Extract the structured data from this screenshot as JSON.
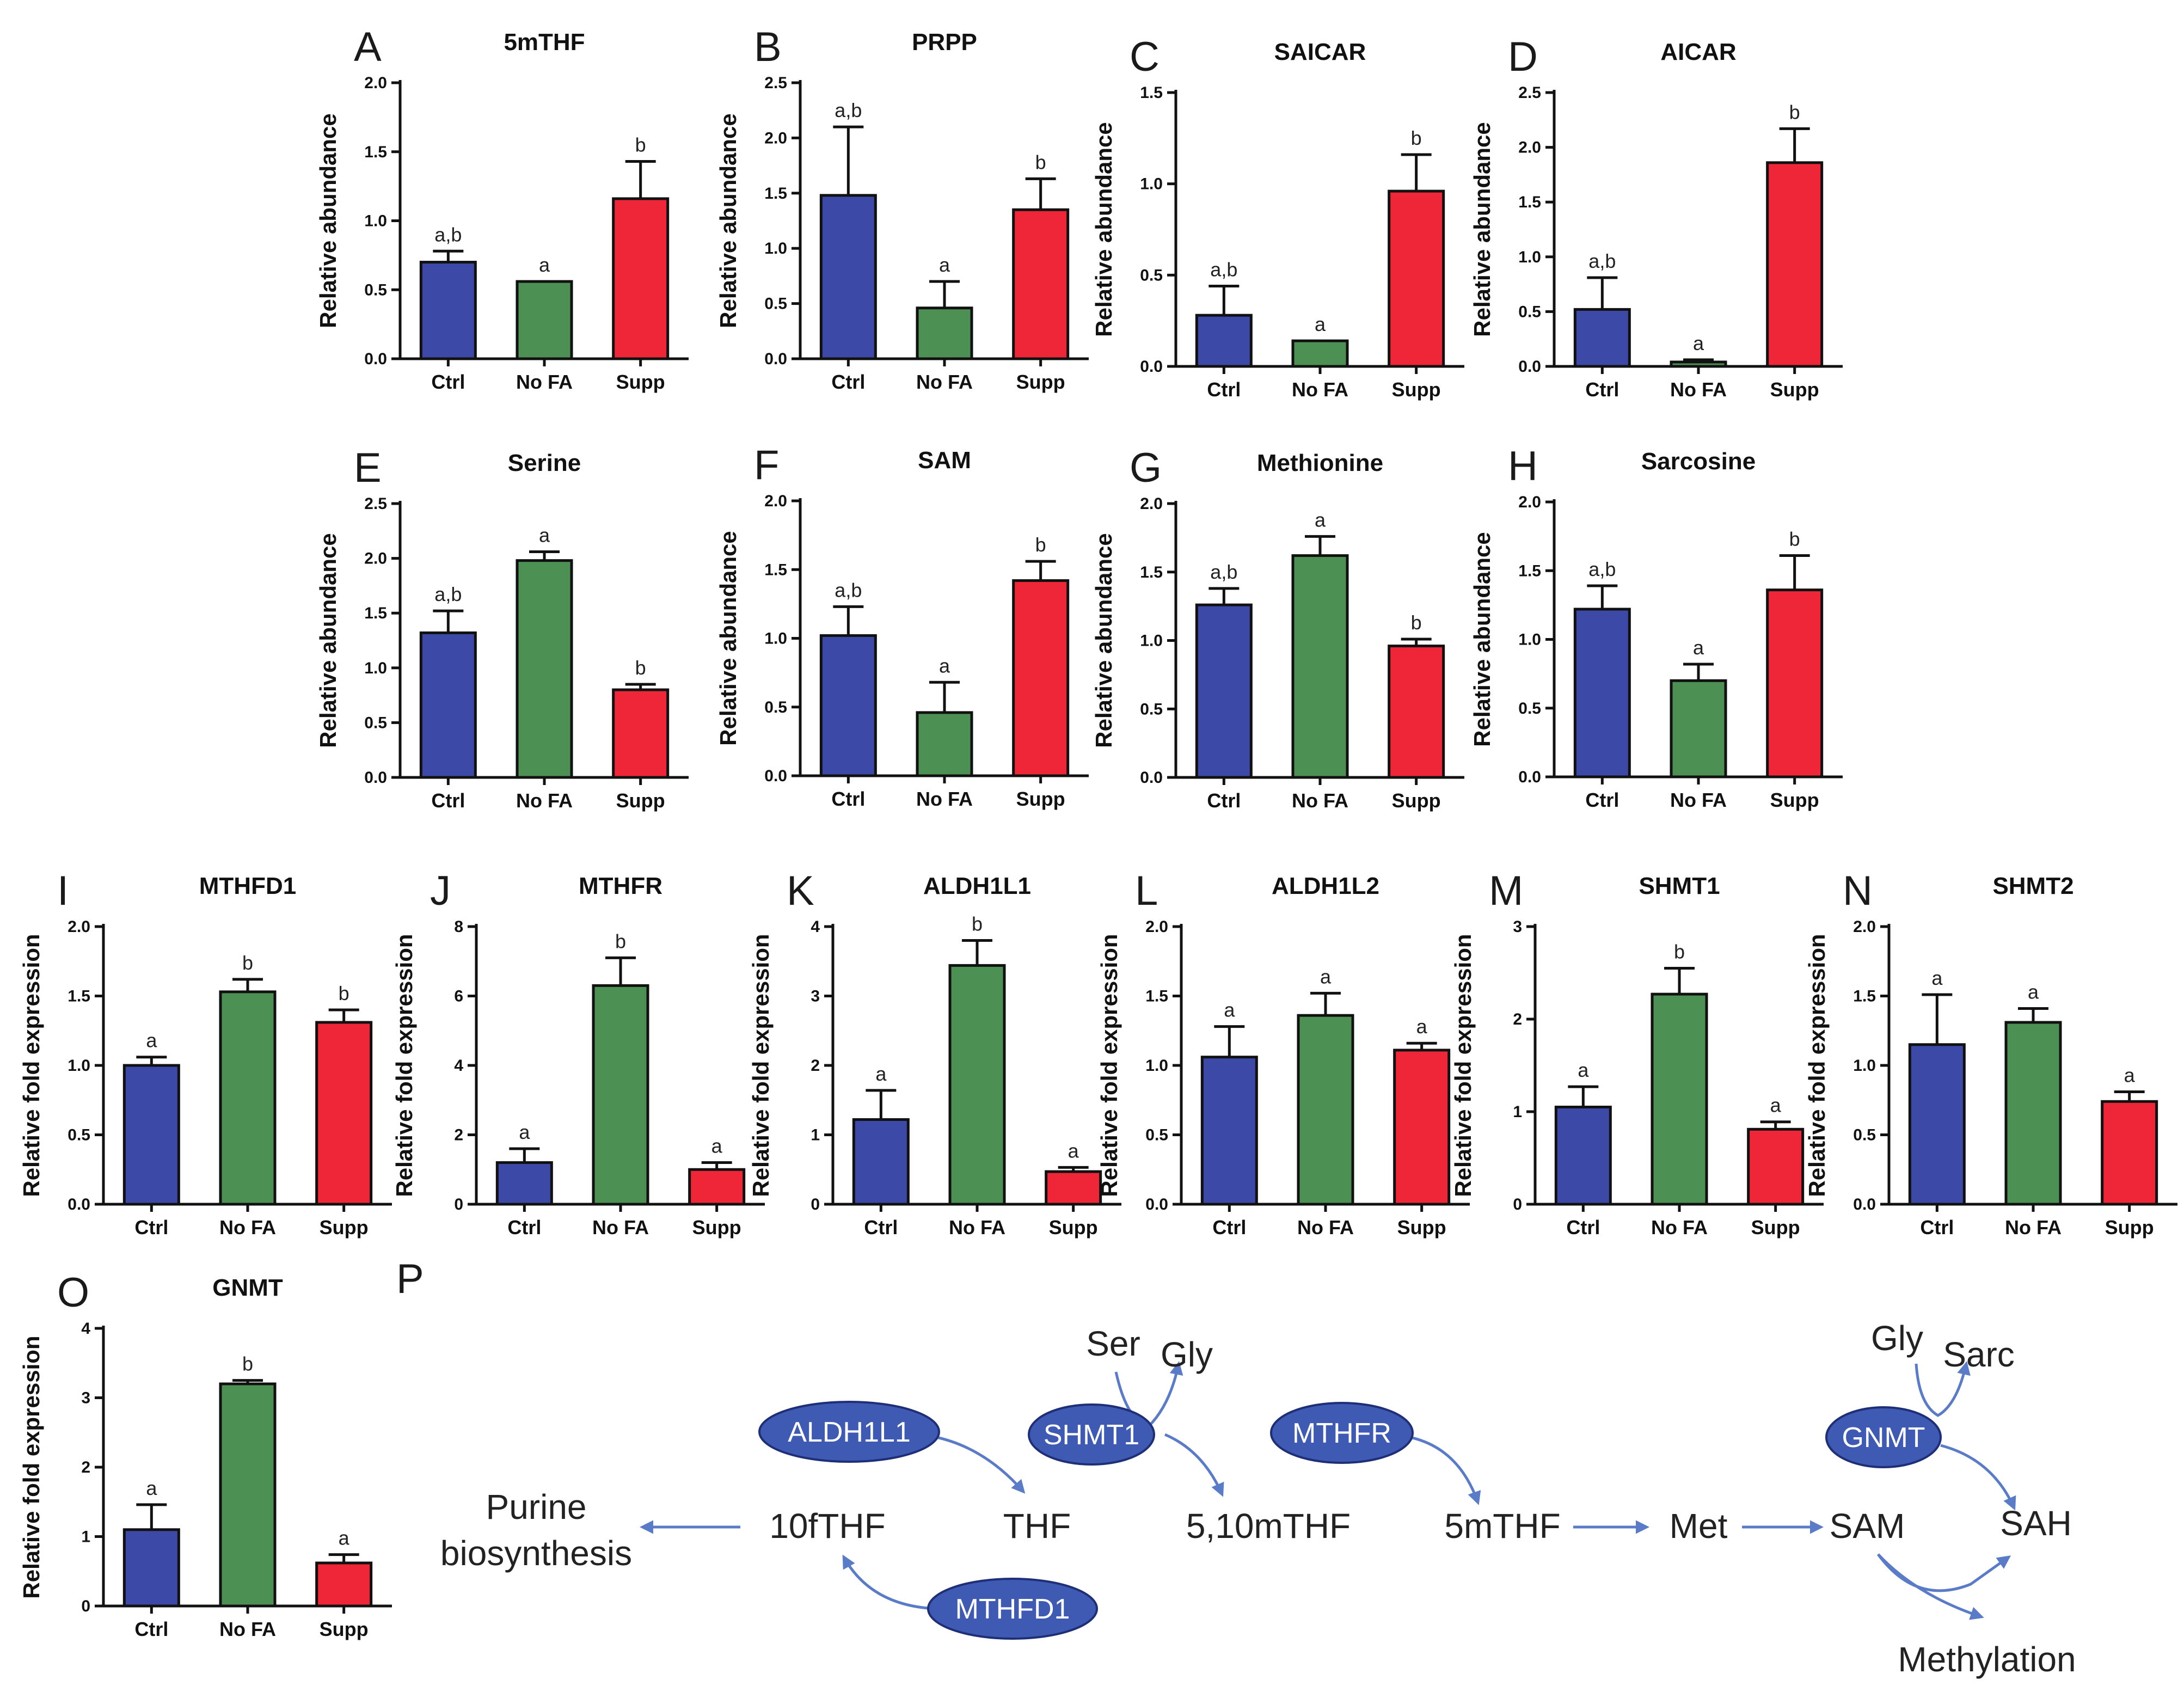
{
  "colors": {
    "Ctrl": "#3d49a7",
    "No FA": "#4c9153",
    "Supp": "#ef2637",
    "enzyme": "#3f5ab3",
    "arrow": "#5a7bc8"
  },
  "chart_data": [
    {
      "type": "bar",
      "panel": "A",
      "title": "5mTHF",
      "ylabel": "Relative abundance",
      "categories": [
        "Ctrl",
        "No FA",
        "Supp"
      ],
      "values": [
        0.7,
        0.56,
        1.16
      ],
      "errors": [
        0.08,
        0.0,
        0.27
      ],
      "sig": [
        "a,b",
        "a",
        "b"
      ],
      "ylim": [
        0,
        2.0
      ],
      "yticks": [
        0.0,
        0.5,
        1.0,
        1.5,
        2.0
      ],
      "ytick_labels": [
        "0.0",
        "0.5",
        "1.0",
        "1.5",
        "2.0"
      ]
    },
    {
      "type": "bar",
      "panel": "B",
      "title": "PRPP",
      "ylabel": "Relative abundance",
      "categories": [
        "Ctrl",
        "No FA",
        "Supp"
      ],
      "values": [
        1.48,
        0.46,
        1.35
      ],
      "errors": [
        0.62,
        0.24,
        0.28
      ],
      "sig": [
        "a,b",
        "a",
        "b"
      ],
      "ylim": [
        0,
        2.5
      ],
      "yticks": [
        0.0,
        0.5,
        1.0,
        1.5,
        2.0,
        2.5
      ],
      "ytick_labels": [
        "0.0",
        "0.5",
        "1.0",
        "1.5",
        "2.0",
        "2.5"
      ]
    },
    {
      "type": "bar",
      "panel": "C",
      "title": "SAICAR",
      "ylabel": "Relative abundance",
      "categories": [
        "Ctrl",
        "No FA",
        "Supp"
      ],
      "values": [
        0.28,
        0.14,
        0.96
      ],
      "errors": [
        0.16,
        0.0,
        0.2
      ],
      "sig": [
        "a,b",
        "a",
        "b"
      ],
      "ylim": [
        0,
        1.5
      ],
      "yticks": [
        0.0,
        0.5,
        1.0,
        1.5
      ],
      "ytick_labels": [
        "0.0",
        "0.5",
        "1.0",
        "1.5"
      ]
    },
    {
      "type": "bar",
      "panel": "D",
      "title": "AICAR",
      "ylabel": "Relative abundance",
      "categories": [
        "Ctrl",
        "No FA",
        "Supp"
      ],
      "values": [
        0.52,
        0.04,
        1.86
      ],
      "errors": [
        0.29,
        0.02,
        0.31
      ],
      "sig": [
        "a,b",
        "a",
        "b"
      ],
      "ylim": [
        0,
        2.5
      ],
      "yticks": [
        0.0,
        0.5,
        1.0,
        1.5,
        2.0,
        2.5
      ],
      "ytick_labels": [
        "0.0",
        "0.5",
        "1.0",
        "1.5",
        "2.0",
        "2.5"
      ]
    },
    {
      "type": "bar",
      "panel": "E",
      "title": "Serine",
      "ylabel": "Relative abundance",
      "categories": [
        "Ctrl",
        "No FA",
        "Supp"
      ],
      "values": [
        1.32,
        1.98,
        0.8
      ],
      "errors": [
        0.2,
        0.08,
        0.05
      ],
      "sig": [
        "a,b",
        "a",
        "b"
      ],
      "ylim": [
        0,
        2.5
      ],
      "yticks": [
        0.0,
        0.5,
        1.0,
        1.5,
        2.0,
        2.5
      ],
      "ytick_labels": [
        "0.0",
        "0.5",
        "1.0",
        "1.5",
        "2.0",
        "2.5"
      ]
    },
    {
      "type": "bar",
      "panel": "F",
      "title": "SAM",
      "ylabel": "Relative abundance",
      "categories": [
        "Ctrl",
        "No FA",
        "Supp"
      ],
      "values": [
        1.02,
        0.46,
        1.42
      ],
      "errors": [
        0.21,
        0.22,
        0.14
      ],
      "sig": [
        "a,b",
        "a",
        "b"
      ],
      "ylim": [
        0,
        2.0
      ],
      "yticks": [
        0.0,
        0.5,
        1.0,
        1.5,
        2.0
      ],
      "ytick_labels": [
        "0.0",
        "0.5",
        "1.0",
        "1.5",
        "2.0"
      ]
    },
    {
      "type": "bar",
      "panel": "G",
      "title": "Methionine",
      "ylabel": "Relative abundance",
      "categories": [
        "Ctrl",
        "No FA",
        "Supp"
      ],
      "values": [
        1.26,
        1.62,
        0.96
      ],
      "errors": [
        0.12,
        0.14,
        0.05
      ],
      "sig": [
        "a,b",
        "a",
        "b"
      ],
      "ylim": [
        0,
        2.0
      ],
      "yticks": [
        0.0,
        0.5,
        1.0,
        1.5,
        2.0
      ],
      "ytick_labels": [
        "0.0",
        "0.5",
        "1.0",
        "1.5",
        "2.0"
      ]
    },
    {
      "type": "bar",
      "panel": "H",
      "title": "Sarcosine",
      "ylabel": "Relative abundance",
      "categories": [
        "Ctrl",
        "No FA",
        "Supp"
      ],
      "values": [
        1.22,
        0.7,
        1.36
      ],
      "errors": [
        0.17,
        0.12,
        0.25
      ],
      "sig": [
        "a,b",
        "a",
        "b"
      ],
      "ylim": [
        0,
        2.0
      ],
      "yticks": [
        0.0,
        0.5,
        1.0,
        1.5,
        2.0
      ],
      "ytick_labels": [
        "0.0",
        "0.5",
        "1.0",
        "1.5",
        "2.0"
      ]
    },
    {
      "type": "bar",
      "panel": "I",
      "title": "MTHFD1",
      "ylabel": "Relative fold expression",
      "categories": [
        "Ctrl",
        "No FA",
        "Supp"
      ],
      "values": [
        1.0,
        1.53,
        1.31
      ],
      "errors": [
        0.06,
        0.09,
        0.09
      ],
      "sig": [
        "a",
        "b",
        "b"
      ],
      "ylim": [
        0,
        2.0
      ],
      "yticks": [
        0.0,
        0.5,
        1.0,
        1.5,
        2.0
      ],
      "ytick_labels": [
        "0.0",
        "0.5",
        "1.0",
        "1.5",
        "2.0"
      ]
    },
    {
      "type": "bar",
      "panel": "J",
      "title": "MTHFR",
      "ylabel": "Relative fold expression",
      "categories": [
        "Ctrl",
        "No FA",
        "Supp"
      ],
      "values": [
        1.2,
        6.3,
        1.0
      ],
      "errors": [
        0.4,
        0.8,
        0.2
      ],
      "sig": [
        "a",
        "b",
        "a"
      ],
      "ylim": [
        0,
        8
      ],
      "yticks": [
        0,
        2,
        4,
        6,
        8
      ],
      "ytick_labels": [
        "0",
        "2",
        "4",
        "6",
        "8"
      ]
    },
    {
      "type": "bar",
      "panel": "K",
      "title": "ALDH1L1",
      "ylabel": "Relative fold expression",
      "categories": [
        "Ctrl",
        "No FA",
        "Supp"
      ],
      "values": [
        1.22,
        3.44,
        0.47
      ],
      "errors": [
        0.42,
        0.36,
        0.06
      ],
      "sig": [
        "a",
        "b",
        "a"
      ],
      "ylim": [
        0,
        4
      ],
      "yticks": [
        0,
        1,
        2,
        3,
        4
      ],
      "ytick_labels": [
        "0",
        "1",
        "2",
        "3",
        "4"
      ]
    },
    {
      "type": "bar",
      "panel": "L",
      "title": "ALDH1L2",
      "ylabel": "Relative fold expression",
      "categories": [
        "Ctrl",
        "No FA",
        "Supp"
      ],
      "values": [
        1.06,
        1.36,
        1.11
      ],
      "errors": [
        0.22,
        0.16,
        0.05
      ],
      "sig": [
        "a",
        "a",
        "a"
      ],
      "ylim": [
        0,
        2.0
      ],
      "yticks": [
        0.0,
        0.5,
        1.0,
        1.5,
        2.0
      ],
      "ytick_labels": [
        "0.0",
        "0.5",
        "1.0",
        "1.5",
        "2.0"
      ]
    },
    {
      "type": "bar",
      "panel": "M",
      "title": "SHMT1",
      "ylabel": "Relative fold expression",
      "categories": [
        "Ctrl",
        "No FA",
        "Supp"
      ],
      "values": [
        1.05,
        2.27,
        0.81
      ],
      "errors": [
        0.22,
        0.28,
        0.08
      ],
      "sig": [
        "a",
        "b",
        "a"
      ],
      "ylim": [
        0,
        3
      ],
      "yticks": [
        0,
        1,
        2,
        3
      ],
      "ytick_labels": [
        "0",
        "1",
        "2",
        "3"
      ]
    },
    {
      "type": "bar",
      "panel": "N",
      "title": "SHMT2",
      "ylabel": "Relative fold expression",
      "categories": [
        "Ctrl",
        "No FA",
        "Supp"
      ],
      "values": [
        1.15,
        1.31,
        0.74
      ],
      "errors": [
        0.36,
        0.1,
        0.07
      ],
      "sig": [
        "a",
        "a",
        "a"
      ],
      "ylim": [
        0,
        2.0
      ],
      "yticks": [
        0.0,
        0.5,
        1.0,
        1.5,
        2.0
      ],
      "ytick_labels": [
        "0.0",
        "0.5",
        "1.0",
        "1.5",
        "2.0"
      ]
    },
    {
      "type": "bar",
      "panel": "O",
      "title": "GNMT",
      "ylabel": "Relative fold expression",
      "categories": [
        "Ctrl",
        "No FA",
        "Supp"
      ],
      "values": [
        1.1,
        3.2,
        0.62
      ],
      "errors": [
        0.36,
        0.05,
        0.12
      ],
      "sig": [
        "a",
        "b",
        "a"
      ],
      "ylim": [
        0,
        4
      ],
      "yticks": [
        0,
        1,
        2,
        3,
        4
      ],
      "ytick_labels": [
        "0",
        "1",
        "2",
        "3",
        "4"
      ]
    }
  ],
  "pathway": {
    "panel": "P",
    "metabolites": {
      "purine1": "Purine",
      "purine2": "biosynthesis",
      "f10thf": "10fTHF",
      "thf": "THF",
      "m510thf": "5,10mTHF",
      "m5thf": "5mTHF",
      "met": "Met",
      "sam": "SAM",
      "sah": "SAH",
      "methylation": "Methylation",
      "ser": "Ser",
      "gly1": "Gly",
      "gly2": "Gly",
      "sarc": "Sarc"
    },
    "enzymes": {
      "aldh1l1": "ALDH1L1",
      "shmt1": "SHMT1",
      "mthfr": "MTHFR",
      "gnmt": "GNMT",
      "mthfd1": "MTHFD1"
    }
  }
}
